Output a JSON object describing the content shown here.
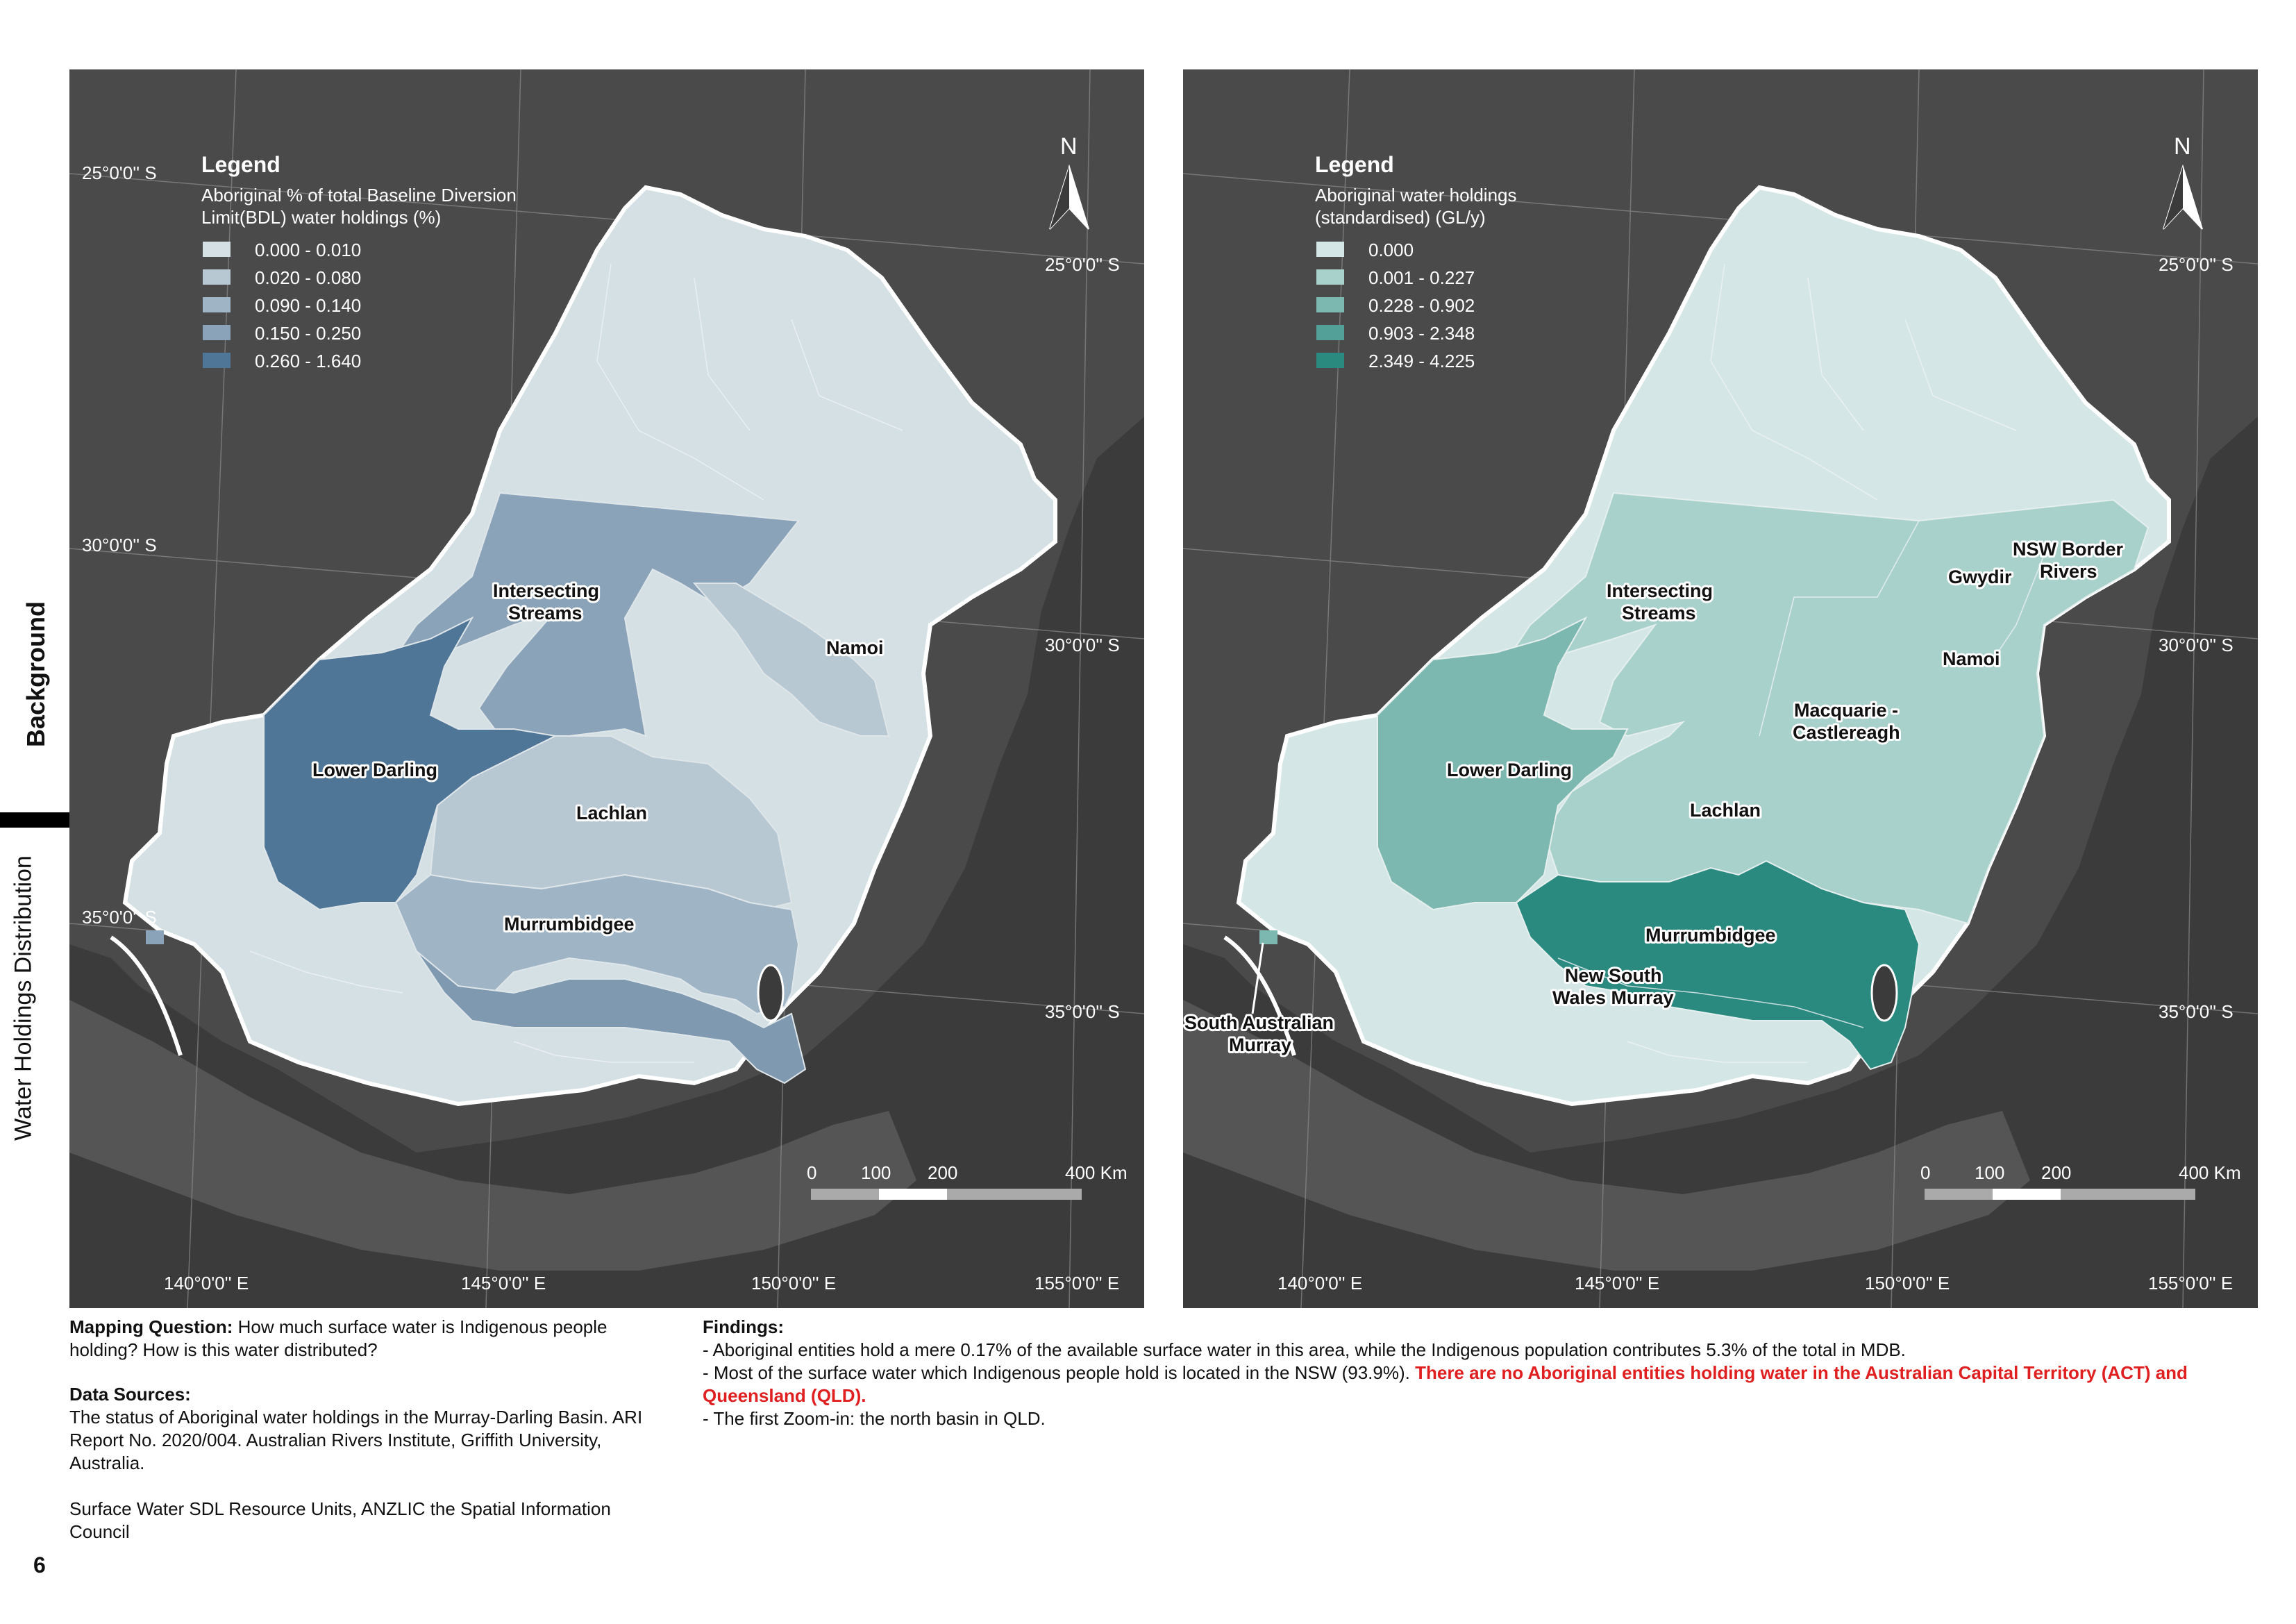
{
  "side": {
    "background": "Background",
    "water_holdings": "Water Holdings Distribution"
  },
  "map_left": {
    "legend_title": "Legend",
    "legend_sub1": "Aboriginal % of total Baseline Diversion",
    "legend_sub2": "Limit(BDL) water holdings (%)",
    "classes": [
      {
        "label": "0.000 - 0.010",
        "color": "#d4e0e4"
      },
      {
        "label": "0.020 - 0.080",
        "color": "#b7c8d3"
      },
      {
        "label": "0.090 - 0.140",
        "color": "#9fb4c5"
      },
      {
        "label": "0.150 - 0.250",
        "color": "#8aa3b8"
      },
      {
        "label": "0.260 - 1.640",
        "color": "#4f7597"
      }
    ],
    "regions": {
      "intersecting_1": "Intersecting",
      "intersecting_2": "Streams",
      "namoi": "Namoi",
      "lower_darling": "Lower Darling",
      "lachlan": "Lachlan",
      "murrumbidgee": "Murrumbidgee"
    }
  },
  "map_right": {
    "legend_title": "Legend",
    "legend_sub1": "Aboriginal water holdings",
    "legend_sub2": "(standardised) (GL/y)",
    "classes": [
      {
        "label": "0.000",
        "color": "#d4e7e6"
      },
      {
        "label": "0.001 - 0.227",
        "color": "#a9d1cc"
      },
      {
        "label": "0.228 - 0.902",
        "color": "#7db8b0"
      },
      {
        "label": "0.903 - 2.348",
        "color": "#53a098"
      },
      {
        "label": "2.349 - 4.225",
        "color": "#2a8a80"
      }
    ],
    "regions": {
      "nsw_border_1": "NSW Border",
      "nsw_border_2": "Rivers",
      "gwydir": "Gwydir",
      "intersecting_1": "Intersecting",
      "intersecting_2": "Streams",
      "namoi": "Namoi",
      "macquarie_1": "Macquarie -",
      "macquarie_2": "Castlereagh",
      "lower_darling": "Lower Darling",
      "lachlan": "Lachlan",
      "murrumbidgee": "Murrumbidgee",
      "nsw_murray_1": "New South",
      "nsw_murray_2": "Wales Murray",
      "sa_murray_1": "South Australian",
      "sa_murray_2": "Murray"
    }
  },
  "map_common": {
    "north": "N",
    "lat_25": "25°0'0'' S",
    "lat_30": "30°0'0'' S",
    "lat_35": "35°0'0'' S",
    "lon_140": "140°0'0'' E",
    "lon_145": "145°0'0'' E",
    "lon_150": "150°0'0'' E",
    "lon_155": "155°0'0'' E",
    "scale_0": "0",
    "scale_100": "100",
    "scale_200": "200",
    "scale_400": "400 Km"
  },
  "mapping_question": {
    "label": "Mapping Question:",
    "text": " How much surface water is Indigenous people holding? How is this water distributed?"
  },
  "data_sources": {
    "label": "Data Sources:",
    "source1": "The status of Aboriginal water holdings in the Murray-Darling Basin. ARI Report No. 2020/004. Australian Rivers Institute, Griffith University, Australia.",
    "source2": "Surface Water SDL Resource Units, ANZLIC the Spatial Information Council"
  },
  "findings": {
    "label": "Findings:",
    "f1": "- Aboriginal entities hold a mere 0.17% of the available surface water in this area, while the Indigenous population contributes 5.3% of the total in MDB.",
    "f2a": "- Most of the surface water which Indigenous people hold is located in the NSW (93.9%). ",
    "f2b": "There are no Aboriginal entities holding water in the Australian Capital Territory (ACT) and Queensland (QLD).",
    "f3": "- The first Zoom-in: the north basin in QLD."
  },
  "page_number": "6"
}
